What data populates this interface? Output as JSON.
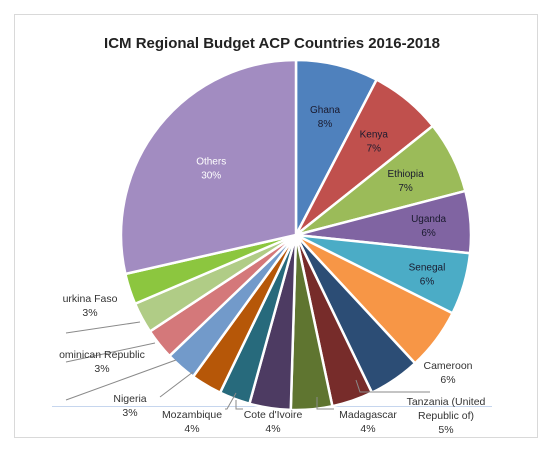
{
  "chart_data": {
    "type": "pie",
    "title": "ICM Regional Budget ACP Countries 2016-2018",
    "slices": [
      {
        "label": "Ghana",
        "value": 8,
        "value_label": "8%",
        "color": "#4f81bd"
      },
      {
        "label": "Kenya",
        "value": 7,
        "value_label": "7%",
        "color": "#c0504d"
      },
      {
        "label": "Ethiopia",
        "value": 7,
        "value_label": "7%",
        "color": "#9bbb59"
      },
      {
        "label": "Uganda",
        "value": 6,
        "value_label": "6%",
        "color": "#8064a2"
      },
      {
        "label": "Senegal",
        "value": 6,
        "value_label": "6%",
        "color": "#4bacc6"
      },
      {
        "label": "Cameroon",
        "value": 6,
        "value_label": "6%",
        "color": "#f79646"
      },
      {
        "label": "Tanzania (United Republic of)",
        "label_lines": [
          "Tanzania (United",
          "Republic of)"
        ],
        "value": 5,
        "value_label": "5%",
        "color": "#2c4d75"
      },
      {
        "label": "Madagascar",
        "value": 4,
        "value_label": "4%",
        "color": "#772c2a"
      },
      {
        "label": "Cote d'Ivoire",
        "value": 4,
        "value_label": "4%",
        "color": "#5f7530"
      },
      {
        "label": "Mozambique",
        "value": 4,
        "value_label": "4%",
        "color": "#4d3b62"
      },
      {
        "label": "",
        "value": 3,
        "value_label": "",
        "color": "#276a7c"
      },
      {
        "label": "",
        "value": 3,
        "value_label": "",
        "color": "#b65708"
      },
      {
        "label": "Nigeria",
        "value": 3,
        "value_label": "3%",
        "color": "#729aca"
      },
      {
        "label": "",
        "value": 3,
        "value_label": "",
        "color": "#d4787a"
      },
      {
        "label": "Dominican Republic",
        "display_label": "ominican Republic",
        "value": 3,
        "value_label": "3%",
        "color": "#b0cc86"
      },
      {
        "label": "Burkina Faso",
        "display_label": "urkina Faso",
        "value": 3,
        "value_label": "3%",
        "color": "#8cc63f"
      },
      {
        "label": "Others",
        "value": 30,
        "value_label": "30%",
        "color": "#a28cc1"
      }
    ]
  }
}
